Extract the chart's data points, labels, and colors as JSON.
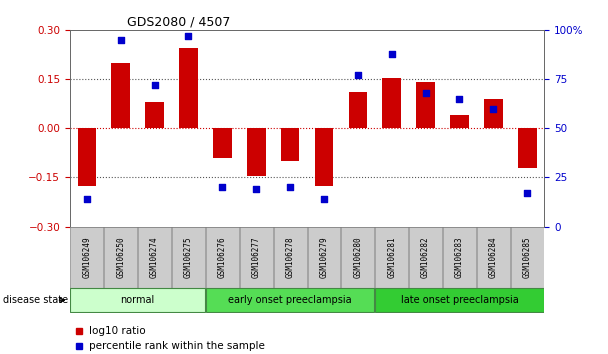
{
  "title": "GDS2080 / 4507",
  "samples": [
    "GSM106249",
    "GSM106250",
    "GSM106274",
    "GSM106275",
    "GSM106276",
    "GSM106277",
    "GSM106278",
    "GSM106279",
    "GSM106280",
    "GSM106281",
    "GSM106282",
    "GSM106283",
    "GSM106284",
    "GSM106285"
  ],
  "log10_ratio": [
    -0.175,
    0.2,
    0.08,
    0.245,
    -0.09,
    -0.145,
    -0.1,
    -0.175,
    0.11,
    0.155,
    0.14,
    0.04,
    0.09,
    -0.12
  ],
  "percentile_rank": [
    14,
    95,
    72,
    97,
    20,
    19,
    20,
    14,
    77,
    88,
    68,
    65,
    60,
    17
  ],
  "ylim_left": [
    -0.3,
    0.3
  ],
  "ylim_right": [
    0,
    100
  ],
  "yticks_left": [
    -0.3,
    -0.15,
    0,
    0.15,
    0.3
  ],
  "yticks_right": [
    0,
    25,
    50,
    75,
    100
  ],
  "bar_color": "#cc0000",
  "dot_color": "#0000cc",
  "zero_line_color": "#cc0000",
  "hline_color": "#555555",
  "groups": [
    {
      "label": "normal",
      "start": 0,
      "end": 4,
      "color": "#ccffcc"
    },
    {
      "label": "early onset preeclampsia",
      "start": 4,
      "end": 9,
      "color": "#55dd55"
    },
    {
      "label": "late onset preeclampsia",
      "start": 9,
      "end": 14,
      "color": "#33cc33"
    }
  ],
  "legend_items": [
    {
      "label": "log10 ratio",
      "color": "#cc0000"
    },
    {
      "label": "percentile rank within the sample",
      "color": "#0000cc"
    }
  ],
  "disease_state_label": "disease state",
  "background_color": "#ffffff",
  "tick_label_bg": "#cccccc"
}
